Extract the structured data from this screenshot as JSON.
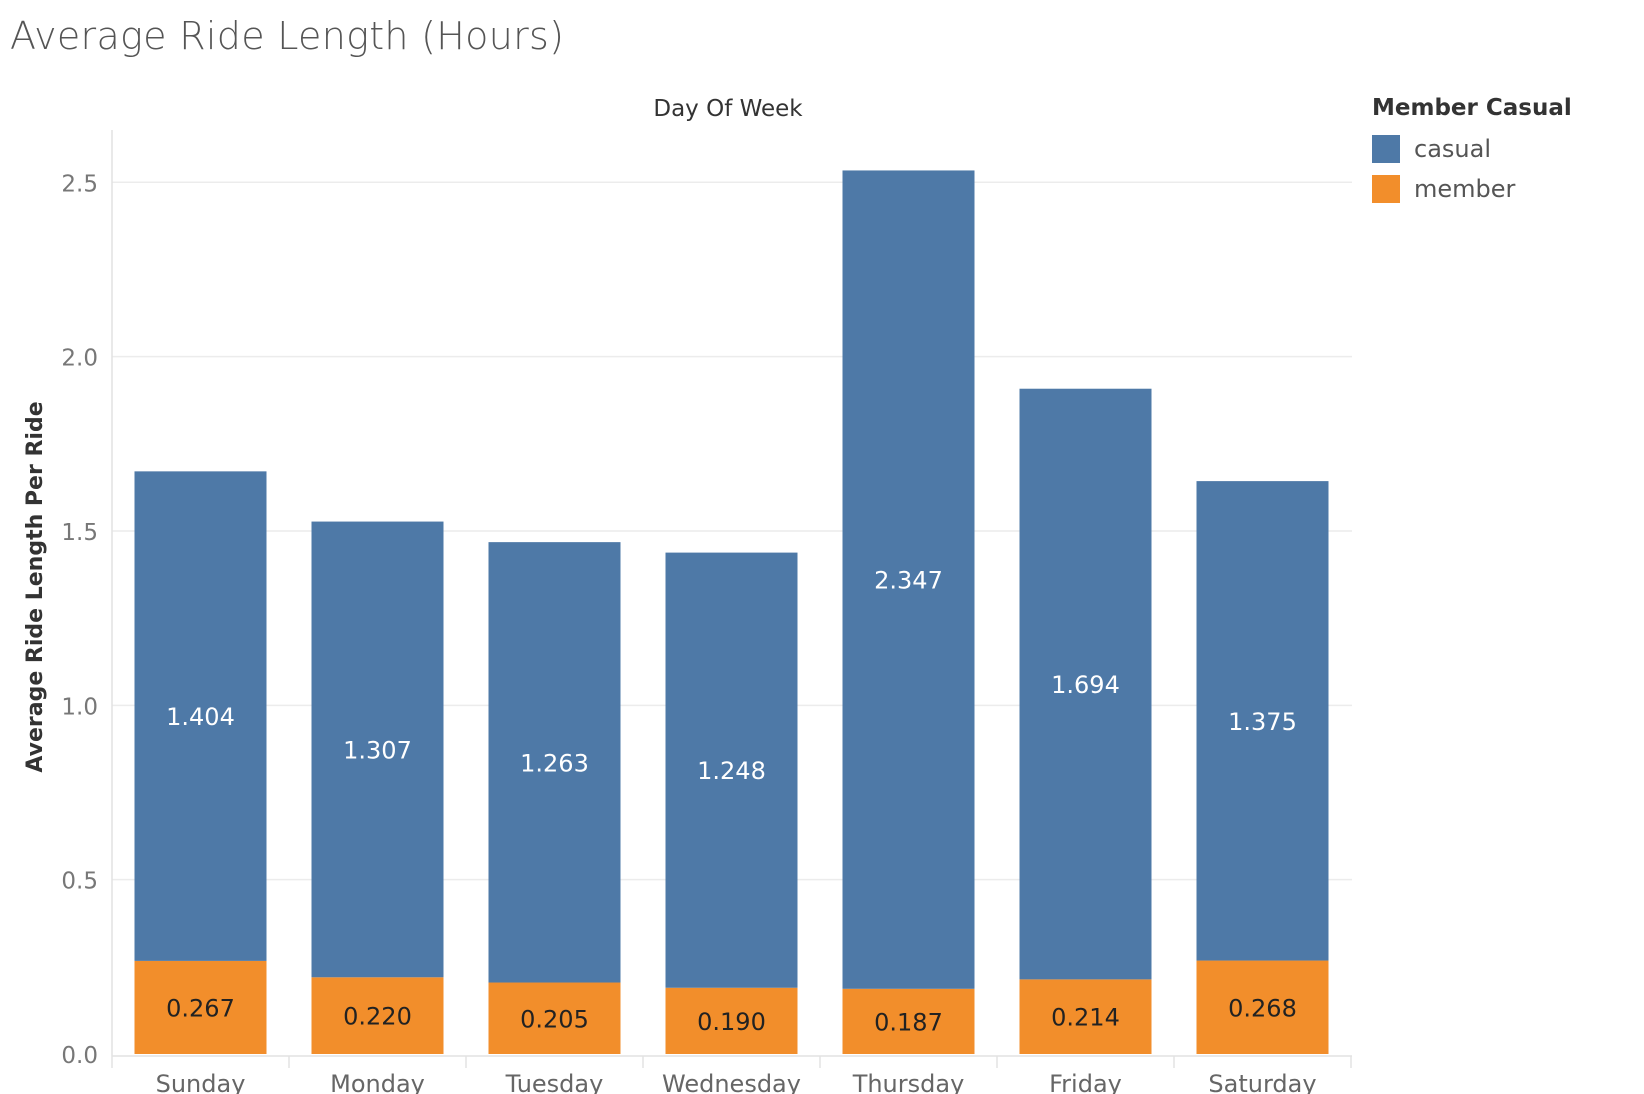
{
  "chart_data": {
    "type": "bar",
    "stacked": true,
    "title": "Average Ride Length (Hours)",
    "xlabel": "Day Of Week",
    "ylabel": "Average Ride Length Per Ride",
    "categories": [
      "Sunday",
      "Monday",
      "Tuesday",
      "Wednesday",
      "Thursday",
      "Friday",
      "Saturday"
    ],
    "series": [
      {
        "name": "member",
        "color": "#F28E2B",
        "values": [
          0.267,
          0.22,
          0.205,
          0.19,
          0.187,
          0.214,
          0.268
        ]
      },
      {
        "name": "casual",
        "color": "#4E79A7",
        "values": [
          1.404,
          1.307,
          1.263,
          1.248,
          2.347,
          1.694,
          1.375
        ]
      }
    ],
    "ylim": [
      0,
      2.65
    ],
    "yticks": [
      "0.0",
      "0.5",
      "1.0",
      "1.5",
      "2.0",
      "2.5"
    ],
    "grid": true,
    "legend": {
      "title": "Member Casual",
      "placement": "top-right",
      "items": [
        {
          "label": "casual",
          "color": "#4E79A7"
        },
        {
          "label": "member",
          "color": "#F28E2B"
        }
      ]
    }
  }
}
